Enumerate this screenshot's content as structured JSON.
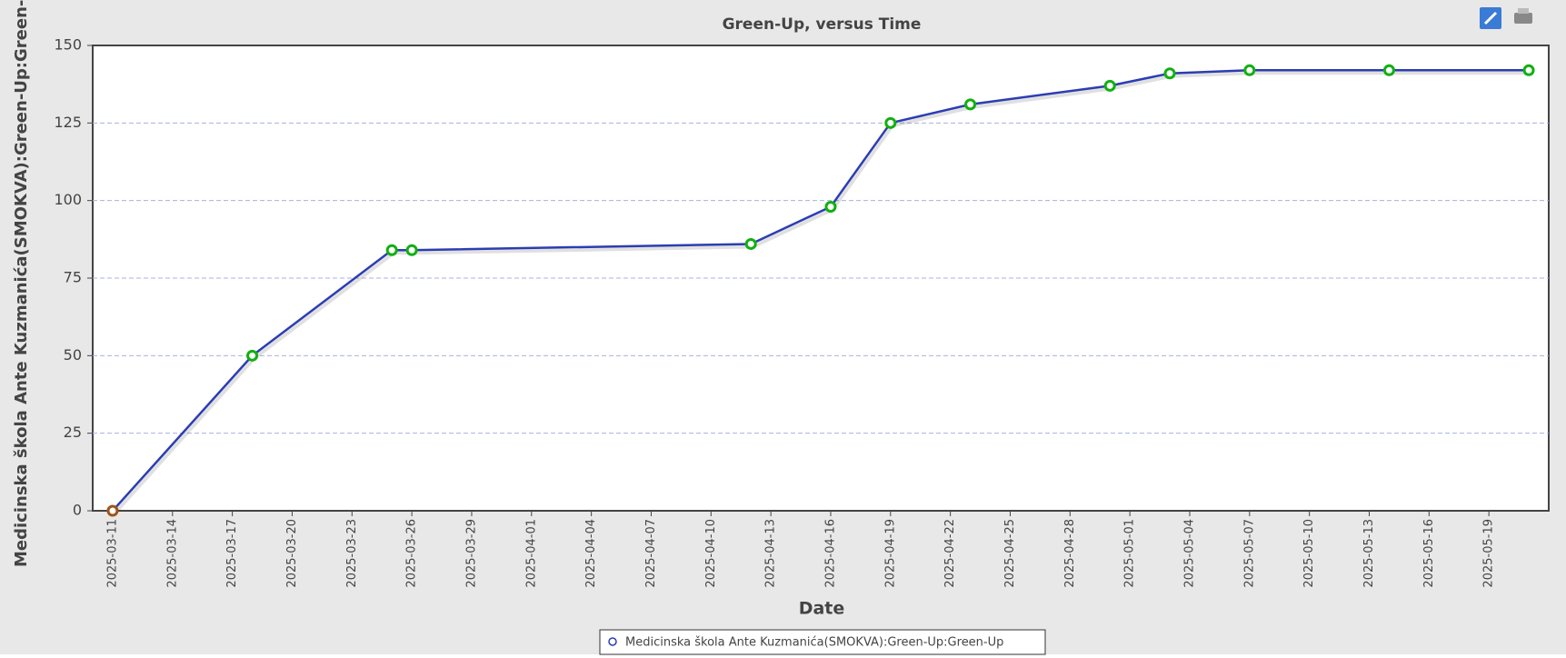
{
  "chart_data": {
    "type": "line",
    "title": "Green-Up, versus Time",
    "xlabel": "Date",
    "ylabel": "Medicinska škola Ante Kuzmanića(SMOKVA):Green-Up:Green-Up",
    "x": [
      "2025-03-11",
      "2025-03-18",
      "2025-03-25",
      "2025-03-26",
      "2025-04-12",
      "2025-04-16",
      "2025-04-19",
      "2025-04-23",
      "2025-04-30",
      "2025-05-03",
      "2025-05-07",
      "2025-05-14",
      "2025-05-21"
    ],
    "series": [
      {
        "name": "Medicinska škola Ante Kuzmanića(SMOKVA):Green-Up:Green-Up",
        "color": "#2b3db3",
        "marker_colors": [
          "#a0521a",
          "#10b010",
          "#10b010",
          "#10b010",
          "#10b010",
          "#10b010",
          "#10b010",
          "#10b010",
          "#10b010",
          "#10b010",
          "#10b010",
          "#10b010",
          "#10b010"
        ],
        "values": [
          0,
          50,
          84,
          84,
          86,
          98,
          125,
          131,
          137,
          141,
          142,
          142,
          142
        ]
      }
    ],
    "xlim": [
      "2025-03-10",
      "2025-05-22"
    ],
    "xticks": [
      "2025-03-11",
      "2025-03-14",
      "2025-03-17",
      "2025-03-20",
      "2025-03-23",
      "2025-03-26",
      "2025-03-29",
      "2025-04-01",
      "2025-04-04",
      "2025-04-07",
      "2025-04-10",
      "2025-04-13",
      "2025-04-16",
      "2025-04-19",
      "2025-04-22",
      "2025-04-25",
      "2025-04-28",
      "2025-05-01",
      "2025-05-04",
      "2025-05-07",
      "2025-05-10",
      "2025-05-13",
      "2025-05-16",
      "2025-05-19"
    ],
    "ylim": [
      0,
      150
    ],
    "yticks": [
      0,
      25,
      50,
      75,
      100,
      125,
      150
    ],
    "grid": true
  }
}
